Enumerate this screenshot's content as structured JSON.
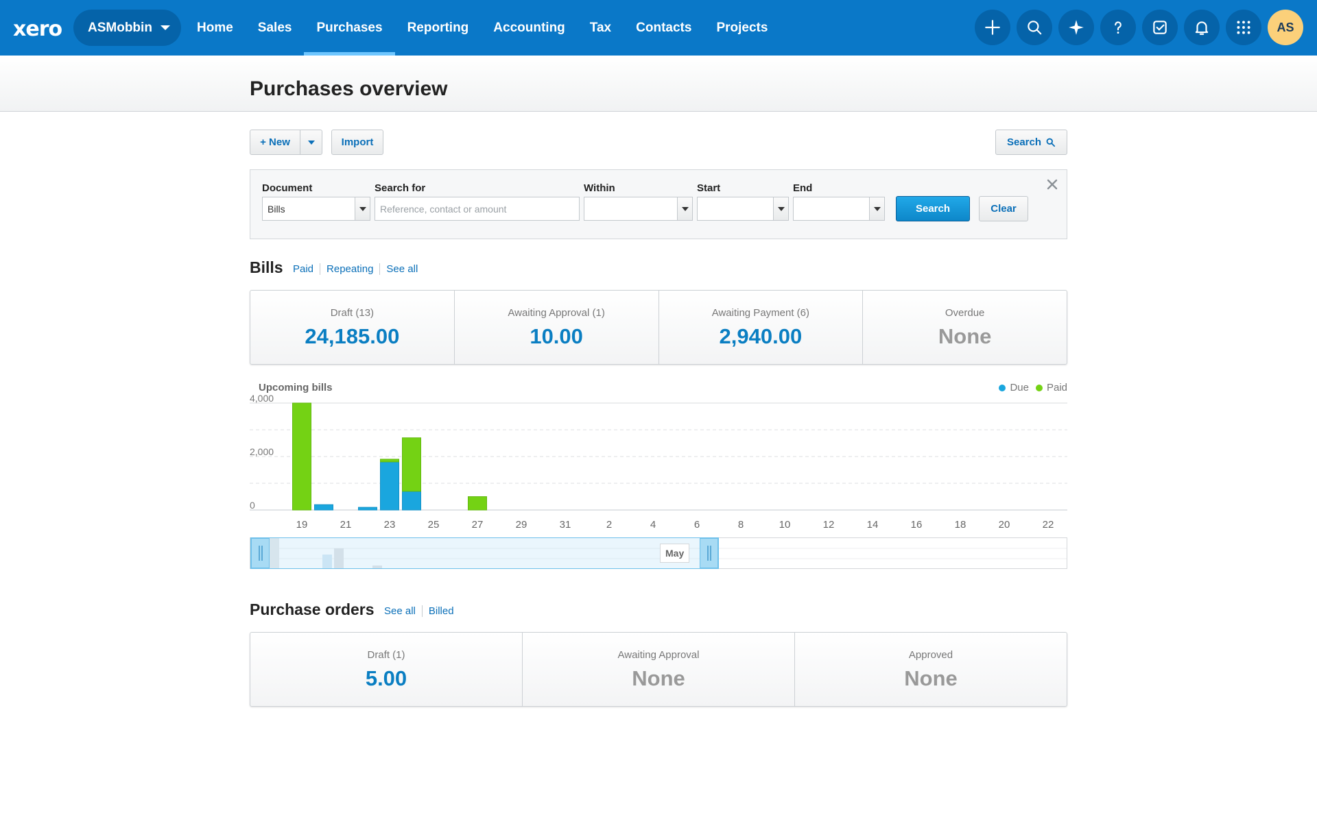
{
  "brand": {
    "logo_text": "xero",
    "org_name": "ASMobbin",
    "accent": "#0a78c8",
    "due_color": "#1aa6de",
    "paid_color": "#74d214"
  },
  "nav": {
    "items": [
      "Home",
      "Sales",
      "Purchases",
      "Reporting",
      "Accounting",
      "Tax",
      "Contacts",
      "Projects"
    ],
    "active": "Purchases"
  },
  "header_tools": [
    "plus-icon",
    "search-icon",
    "sparkle-icon",
    "help-icon",
    "checklist-icon",
    "bell-icon",
    "apps-grid-icon"
  ],
  "user": {
    "initials": "AS"
  },
  "page": {
    "title": "Purchases overview"
  },
  "toolbar": {
    "new_label": "+ New",
    "import_label": "Import",
    "search_label": "Search"
  },
  "search_panel": {
    "document_label": "Document",
    "document_value": "Bills",
    "search_for_label": "Search for",
    "search_for_placeholder": "Reference, contact or amount",
    "within_label": "Within",
    "start_label": "Start",
    "end_label": "End",
    "search_button": "Search",
    "clear_button": "Clear"
  },
  "bills": {
    "title": "Bills",
    "links": [
      "Paid",
      "Repeating",
      "See all"
    ],
    "cards": [
      {
        "label": "Draft (13)",
        "value": "24,185.00"
      },
      {
        "label": "Awaiting Approval (1)",
        "value": "10.00"
      },
      {
        "label": "Awaiting Payment (6)",
        "value": "2,940.00"
      },
      {
        "label": "Overdue",
        "value": "None"
      }
    ]
  },
  "chart_data": {
    "type": "bar",
    "title": "Upcoming bills",
    "y_ticks": [
      "4,000",
      "2,000",
      "0"
    ],
    "ylim": [
      0,
      4000
    ],
    "x_tick_labels": [
      "19",
      "21",
      "23",
      "25",
      "27",
      "29",
      "31",
      "2",
      "4",
      "6",
      "8",
      "10",
      "12",
      "14",
      "16",
      "18",
      "20",
      "22"
    ],
    "legend": [
      "Due",
      "Paid"
    ],
    "legend_position": "top-right",
    "series": [
      {
        "name": "Due",
        "color": "#1aa6de",
        "points": [
          {
            "x": "20",
            "value": 200
          },
          {
            "x": "22",
            "value": 100
          },
          {
            "x": "23",
            "value": 1800
          },
          {
            "x": "24",
            "value": 700
          }
        ]
      },
      {
        "name": "Paid",
        "color": "#74d214",
        "points": [
          {
            "x": "19",
            "value": 4000
          },
          {
            "x": "23",
            "value": 100
          },
          {
            "x": "24",
            "value": 2000
          },
          {
            "x": "27",
            "value": 500
          }
        ]
      }
    ],
    "navigator_label": "May"
  },
  "purchase_orders": {
    "title": "Purchase orders",
    "links": [
      "See all",
      "Billed"
    ],
    "cards": [
      {
        "label": "Draft (1)",
        "value": "5.00"
      },
      {
        "label": "Awaiting Approval",
        "value": "None"
      },
      {
        "label": "Approved",
        "value": "None"
      }
    ]
  }
}
